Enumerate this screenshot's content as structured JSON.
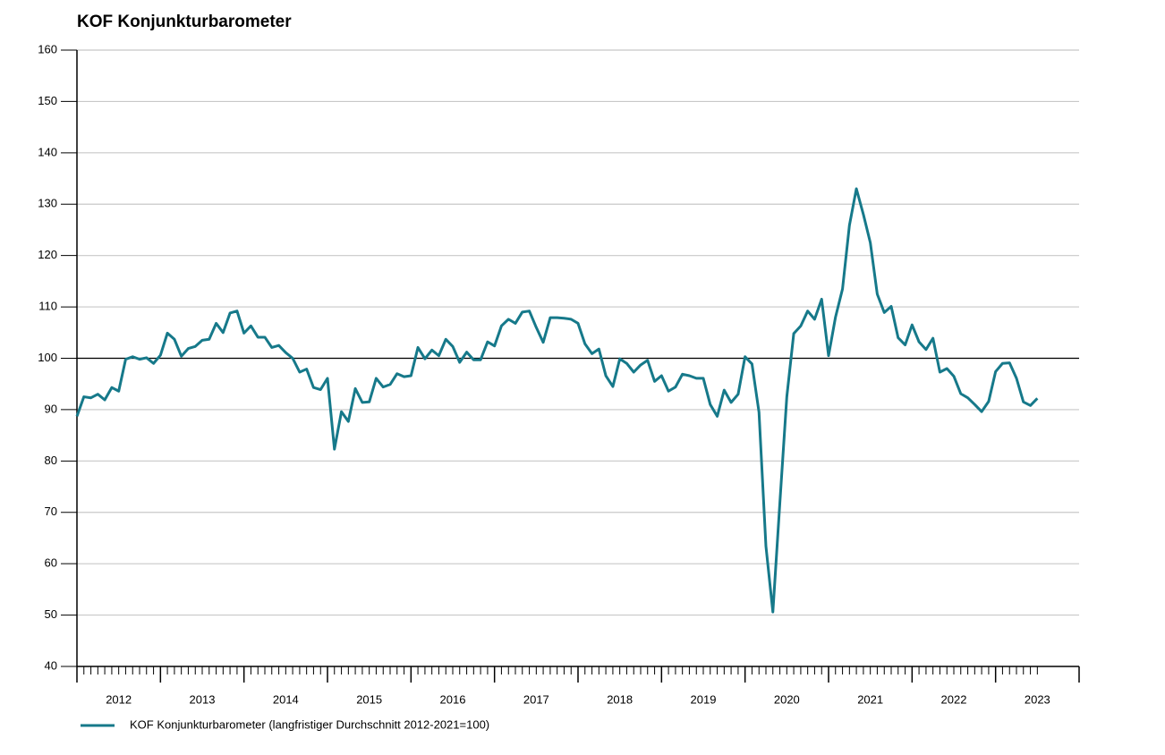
{
  "chart_data": {
    "type": "line",
    "title": "KOF Konjunkturbarometer",
    "x": [
      2012,
      2012.083,
      2012.167,
      2012.25,
      2012.333,
      2012.417,
      2012.5,
      2012.583,
      2012.667,
      2012.75,
      2012.833,
      2012.917,
      2013,
      2013.083,
      2013.167,
      2013.25,
      2013.333,
      2013.417,
      2013.5,
      2013.583,
      2013.667,
      2013.75,
      2013.833,
      2013.917,
      2014,
      2014.083,
      2014.167,
      2014.25,
      2014.333,
      2014.417,
      2014.5,
      2014.583,
      2014.667,
      2014.75,
      2014.833,
      2014.917,
      2015,
      2015.083,
      2015.167,
      2015.25,
      2015.333,
      2015.417,
      2015.5,
      2015.583,
      2015.667,
      2015.75,
      2015.833,
      2015.917,
      2016,
      2016.083,
      2016.167,
      2016.25,
      2016.333,
      2016.417,
      2016.5,
      2016.583,
      2016.667,
      2016.75,
      2016.833,
      2016.917,
      2017,
      2017.083,
      2017.167,
      2017.25,
      2017.333,
      2017.417,
      2017.5,
      2017.583,
      2017.667,
      2017.75,
      2017.833,
      2017.917,
      2018,
      2018.083,
      2018.167,
      2018.25,
      2018.333,
      2018.417,
      2018.5,
      2018.583,
      2018.667,
      2018.75,
      2018.833,
      2018.917,
      2019,
      2019.083,
      2019.167,
      2019.25,
      2019.333,
      2019.417,
      2019.5,
      2019.583,
      2019.667,
      2019.75,
      2019.833,
      2019.917,
      2020,
      2020.083,
      2020.167,
      2020.25,
      2020.333,
      2020.417,
      2020.5,
      2020.583,
      2020.667,
      2020.75,
      2020.833,
      2020.917,
      2021,
      2021.083,
      2021.167,
      2021.25,
      2021.333,
      2021.417,
      2021.5,
      2021.583,
      2021.667,
      2021.75,
      2021.833,
      2021.917,
      2022,
      2022.083,
      2022.167,
      2022.25,
      2022.333,
      2022.417,
      2022.5,
      2022.583,
      2022.667,
      2022.75,
      2022.833,
      2022.917,
      2023,
      2023.083,
      2023.167,
      2023.25,
      2023.333,
      2023.417,
      2023.5
    ],
    "series": [
      {
        "name": "KOF Konjunkturbarometer (langfristiger Durchschnitt 2012-2021=100)",
        "color": "#16798a",
        "values": [
          88.7,
          92.5,
          92.3,
          93.0,
          91.9,
          94.3,
          93.6,
          99.8,
          100.3,
          99.8,
          100.1,
          99.0,
          100.6,
          104.9,
          103.7,
          100.4,
          101.9,
          102.3,
          103.5,
          103.7,
          106.8,
          105.0,
          108.8,
          109.2,
          104.9,
          106.3,
          104.1,
          104.1,
          102.1,
          102.5,
          101.1,
          100.0,
          97.3,
          97.9,
          94.3,
          93.9,
          96.1,
          82.3,
          89.6,
          87.7,
          94.1,
          91.4,
          91.5,
          96.1,
          94.4,
          94.9,
          97.0,
          96.4,
          96.6,
          102.1,
          99.9,
          101.6,
          100.5,
          103.7,
          102.3,
          99.2,
          101.2,
          99.7,
          99.7,
          103.2,
          102.4,
          106.3,
          107.6,
          106.8,
          109.0,
          109.2,
          106.0,
          103.1,
          107.9,
          107.9,
          107.8,
          107.6,
          106.8,
          102.8,
          100.9,
          101.8,
          96.6,
          94.5,
          99.9,
          99.0,
          97.3,
          98.7,
          99.6,
          95.5,
          96.6,
          93.6,
          94.4,
          96.9,
          96.6,
          96.1,
          96.1,
          91.0,
          88.7,
          93.8,
          91.4,
          93.0,
          100.3,
          98.9,
          89.5,
          63.4,
          50.6,
          71.9,
          92.5,
          104.8,
          106.3,
          109.2,
          107.6,
          111.5,
          100.5,
          108.0,
          113.5,
          125.9,
          133.0,
          128.0,
          122.5,
          112.5,
          108.9,
          110.1,
          104.0,
          102.6,
          106.5,
          103.2,
          101.7,
          103.9,
          97.3,
          98.0,
          96.5,
          93.1,
          92.3,
          91.0,
          89.6,
          91.6,
          97.4,
          99.0,
          99.1,
          96.1,
          91.5,
          90.8,
          92.2
        ]
      }
    ],
    "xlim": [
      2012,
      2024
    ],
    "xticks": [
      {
        "value": 2012.5,
        "label": "2012"
      },
      {
        "value": 2013.5,
        "label": "2013"
      },
      {
        "value": 2014.5,
        "label": "2014"
      },
      {
        "value": 2015.5,
        "label": "2015"
      },
      {
        "value": 2016.5,
        "label": "2016"
      },
      {
        "value": 2017.5,
        "label": "2017"
      },
      {
        "value": 2018.5,
        "label": "2018"
      },
      {
        "value": 2019.5,
        "label": "2019"
      },
      {
        "value": 2020.5,
        "label": "2020"
      },
      {
        "value": 2021.5,
        "label": "2021"
      },
      {
        "value": 2022.5,
        "label": "2022"
      },
      {
        "value": 2023.5,
        "label": "2023"
      }
    ],
    "ylim": [
      40,
      160
    ],
    "yticks": [
      40,
      50,
      60,
      70,
      80,
      90,
      100,
      110,
      120,
      130,
      140,
      150,
      160
    ],
    "reference_line": 100,
    "grid": true,
    "legend": "bottom-left"
  }
}
